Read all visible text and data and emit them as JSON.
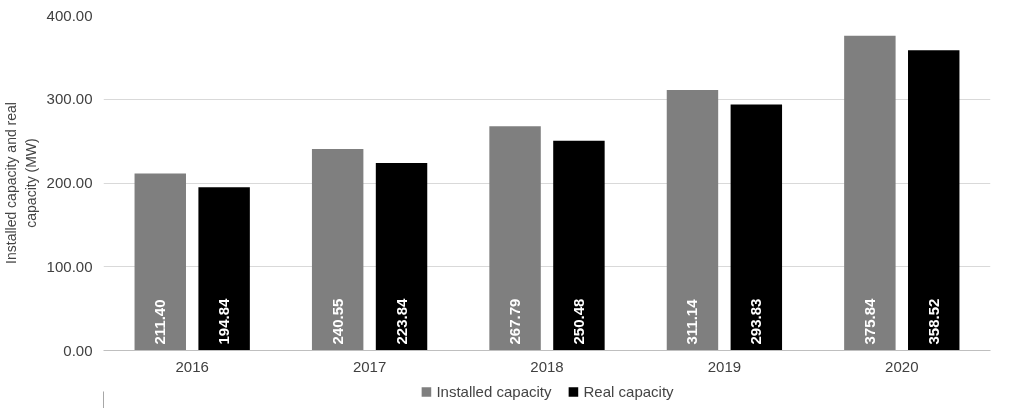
{
  "chart_data": {
    "type": "bar",
    "ylabel": "Installed capacity and real capacity (MW)",
    "categories": [
      "2016",
      "2017",
      "2018",
      "2019",
      "2020"
    ],
    "series": [
      {
        "name": "Installed capacity",
        "color": "#7f7f7f",
        "values": [
          211.4,
          240.55,
          267.79,
          311.14,
          375.84
        ],
        "value_labels": [
          "211.40",
          "240.55",
          "267.79",
          "311.14",
          "375.84"
        ]
      },
      {
        "name": "Real capacity",
        "color": "#000000",
        "values": [
          194.84,
          223.84,
          250.48,
          293.83,
          358.52
        ],
        "value_labels": [
          "194.84",
          "223.84",
          "250.48",
          "293.83",
          "358.52"
        ]
      }
    ],
    "ylim": [
      0,
      400
    ],
    "yticks": [
      {
        "value": 0,
        "label": "0.00"
      },
      {
        "value": 100,
        "label": "100.00"
      },
      {
        "value": 200,
        "label": "200.00"
      },
      {
        "value": 300,
        "label": "300.00"
      },
      {
        "value": 400,
        "label": "400.00"
      }
    ],
    "grid": "y",
    "legend": "bottom"
  }
}
